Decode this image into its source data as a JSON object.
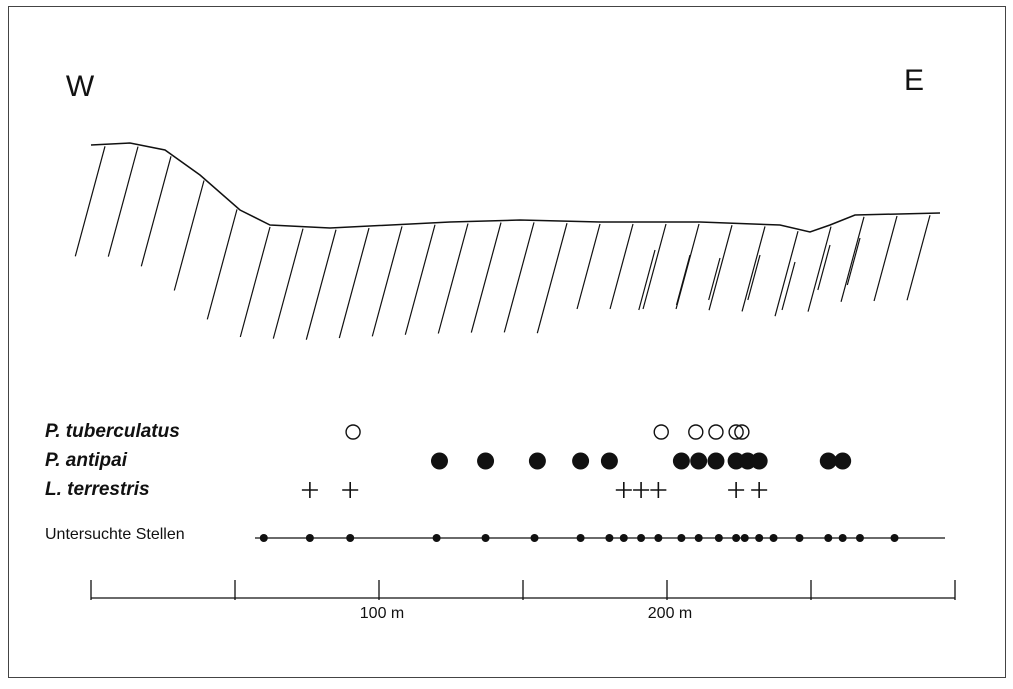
{
  "compass": {
    "west": "W",
    "east": "E"
  },
  "series": [
    {
      "name": "P. tuberculatus",
      "marker": "open-circle",
      "positions": [
        91,
        198,
        210,
        217,
        224,
        226
      ]
    },
    {
      "name": "P. antipai",
      "marker": "filled-circle",
      "positions": [
        121,
        137,
        155,
        170,
        180,
        205,
        211,
        217,
        224,
        228,
        232,
        256,
        261
      ]
    },
    {
      "name": "L. terrestris",
      "marker": "plus",
      "positions": [
        76,
        90,
        185,
        191,
        197,
        224,
        232
      ]
    },
    {
      "name": "Untersuchte Stellen",
      "marker": "dot",
      "positions": [
        60,
        76,
        90,
        120,
        137,
        154,
        170,
        180,
        185,
        191,
        197,
        205,
        211,
        218,
        224,
        227,
        232,
        237,
        246,
        256,
        261,
        267,
        279
      ]
    }
  ],
  "scale": {
    "lim": [
      0,
      300
    ],
    "minor_ticks": [
      0,
      50,
      150,
      250,
      300
    ],
    "ticks": [
      {
        "value": 100,
        "label": "100 m"
      },
      {
        "value": 200,
        "label": "200 m"
      }
    ]
  }
}
